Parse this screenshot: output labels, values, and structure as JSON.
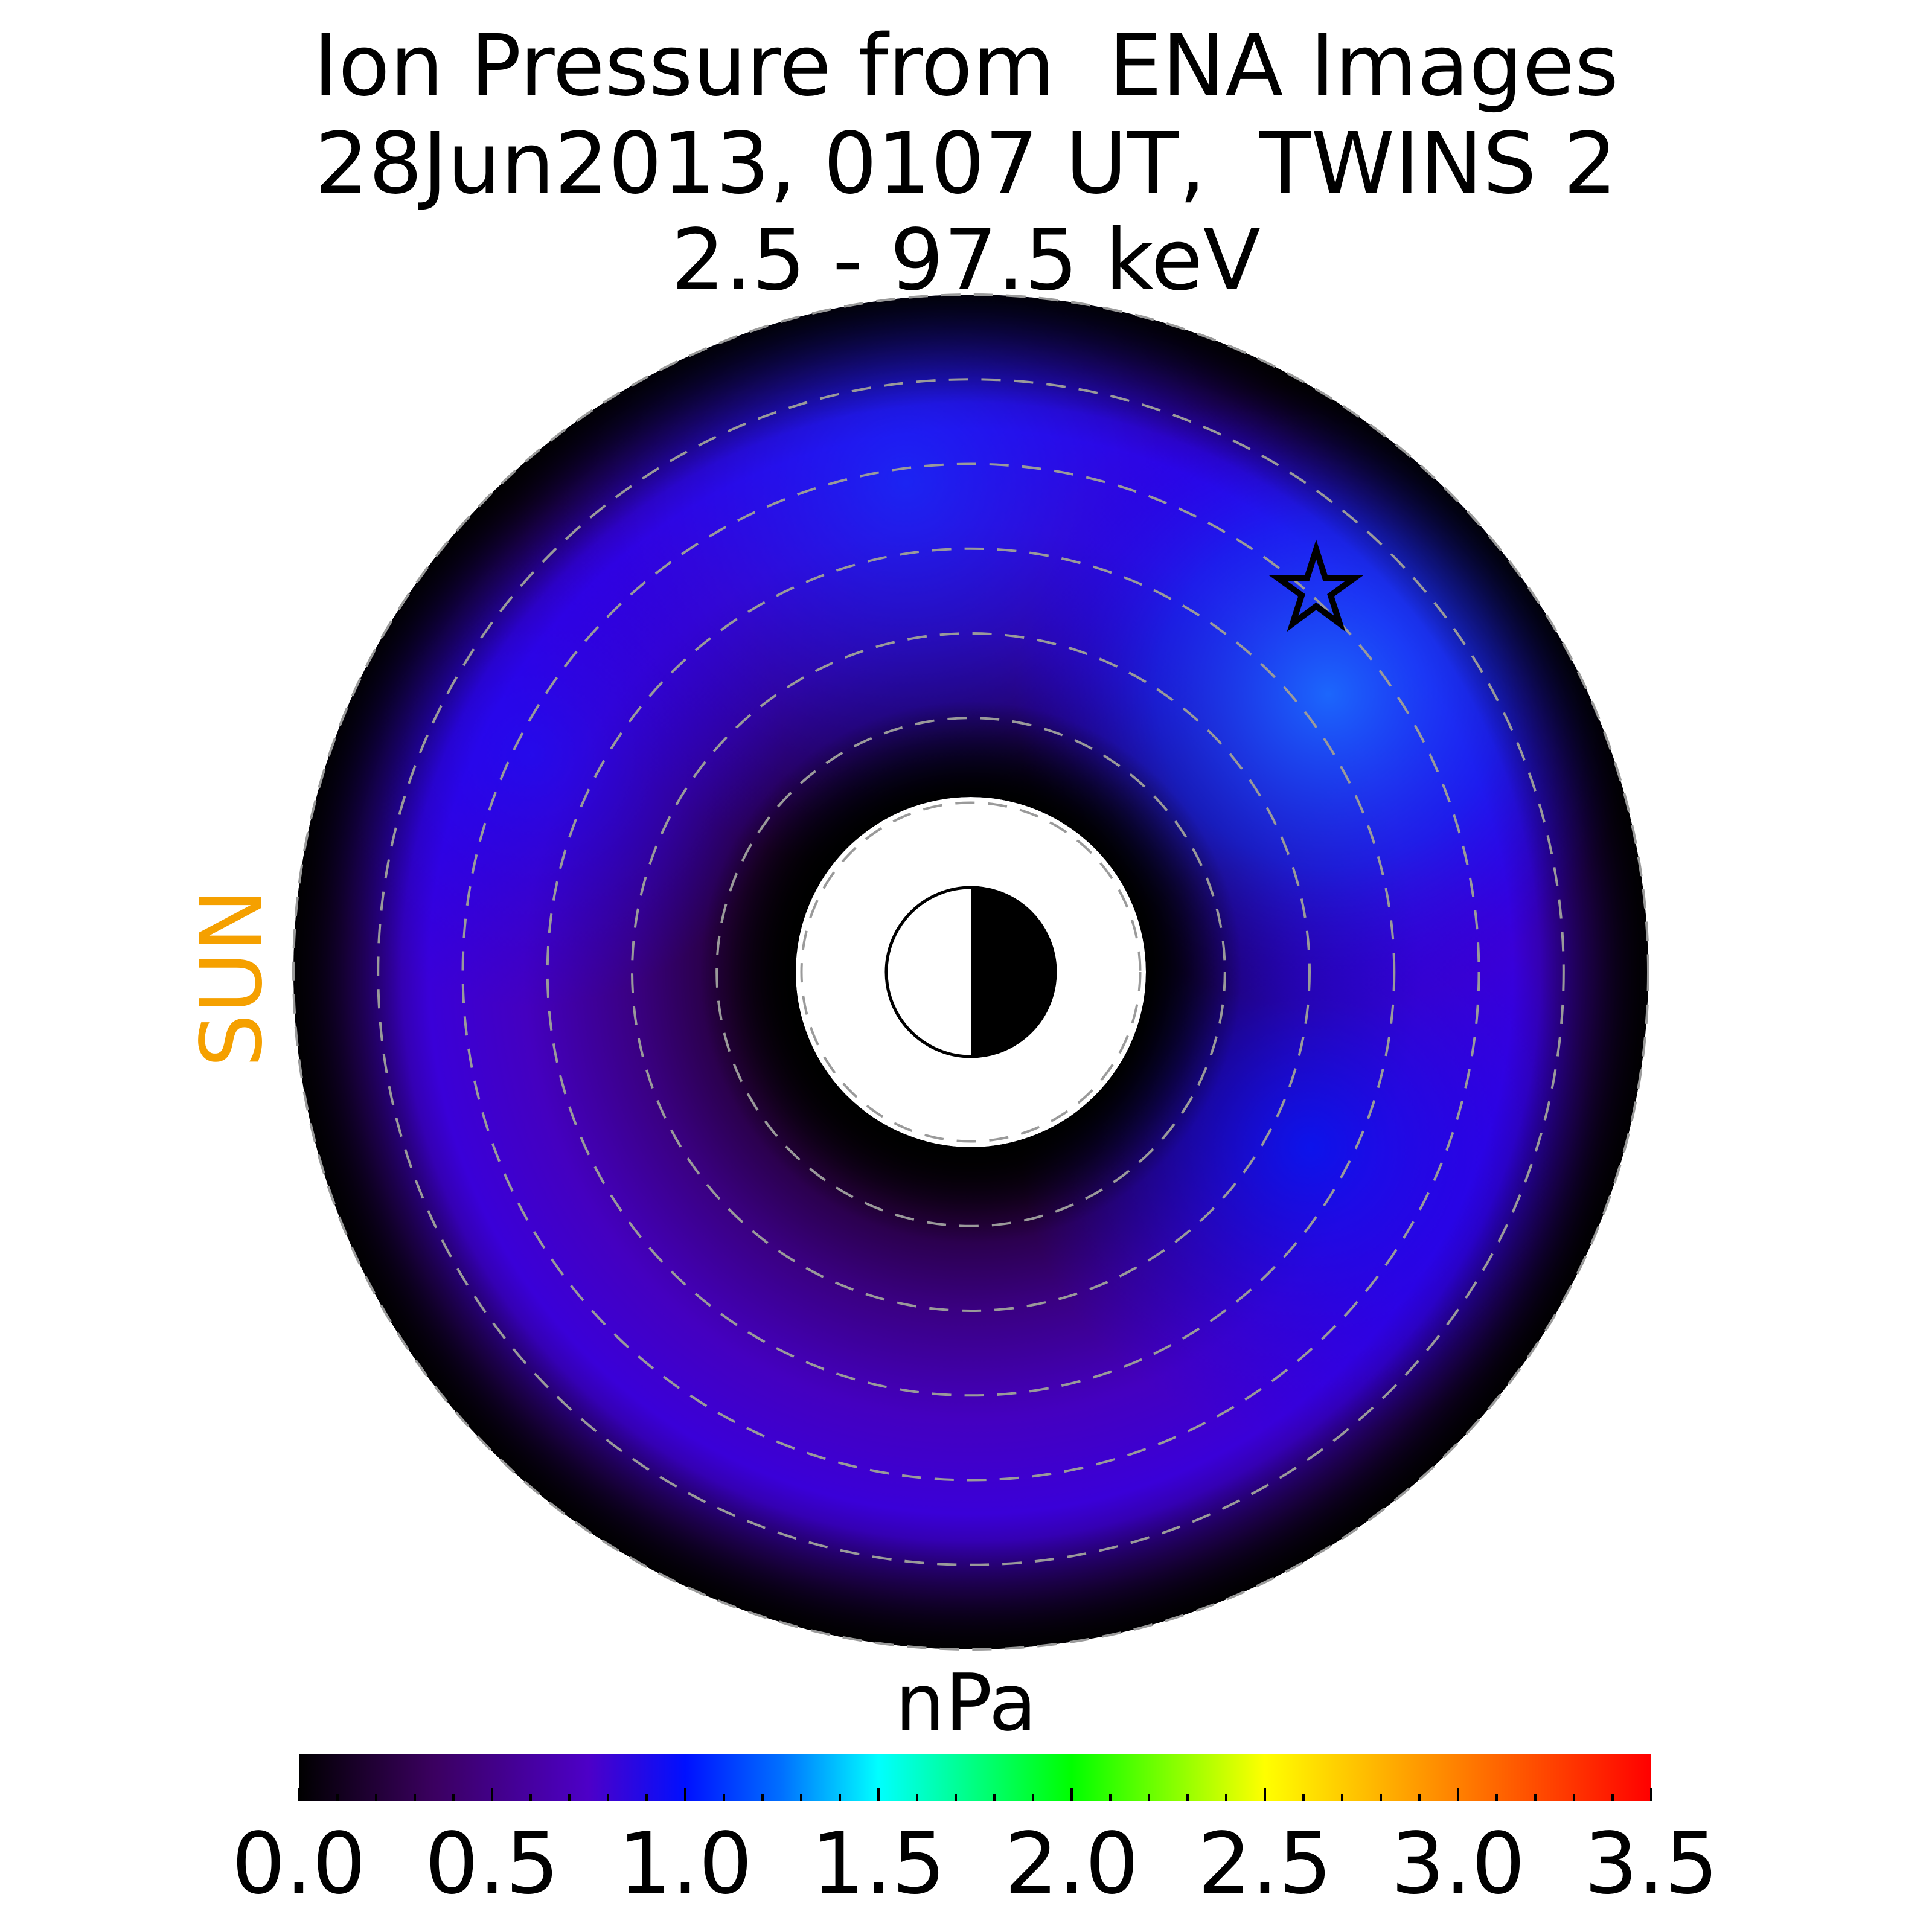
{
  "chart_data": {
    "type": "heatmap",
    "title": [
      "Ion Pressure from  ENA Images",
      "28Jun2013, 0107 UT,  TWINS 2",
      "2.5 - 97.5 keV"
    ],
    "sun_label": "SUN",
    "colorbar": {
      "label": "nPa",
      "min": 0.0,
      "max": 3.5,
      "ticks": [
        0.0,
        0.5,
        1.0,
        1.5,
        2.0,
        2.5,
        3.0,
        3.5
      ],
      "tick_labels": [
        "0.0",
        "0.5",
        "1.0",
        "1.5",
        "2.0",
        "2.5",
        "3.0",
        "3.5"
      ],
      "stops": [
        {
          "value": 0.0,
          "color": "#000000"
        },
        {
          "value": 0.35,
          "color": "#3b0060"
        },
        {
          "value": 0.75,
          "color": "#4d00c8"
        },
        {
          "value": 1.0,
          "color": "#0010ff"
        },
        {
          "value": 1.25,
          "color": "#0070ff"
        },
        {
          "value": 1.5,
          "color": "#00ffff"
        },
        {
          "value": 2.0,
          "color": "#00ff00"
        },
        {
          "value": 2.5,
          "color": "#ffff00"
        },
        {
          "value": 3.0,
          "color": "#ff8000"
        },
        {
          "value": 3.5,
          "color": "#ff0000"
        }
      ]
    },
    "map": {
      "view": "equatorial plane, sun to the left",
      "r_inner_RE": 2,
      "r_outer_RE": 8,
      "dashed_circles_RE": [
        2,
        3,
        4,
        5,
        6,
        7,
        8
      ],
      "peak_pressure_nPa": 1.2,
      "peak_location": "upper right (dusk side)",
      "star_marker": "upper right, on the pressure peak"
    }
  }
}
